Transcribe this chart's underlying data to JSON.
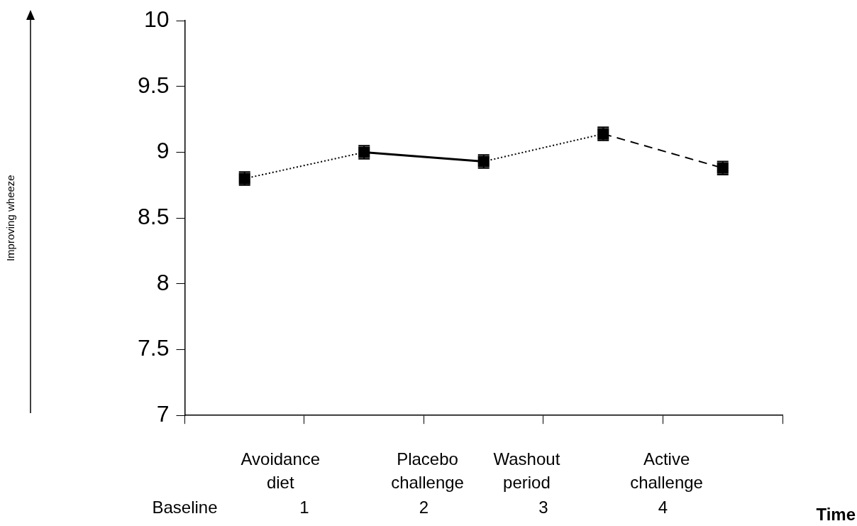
{
  "chart_data": {
    "type": "line",
    "xlabel": "Time",
    "xlim": [
      0,
      5
    ],
    "xticks": [
      {
        "value": 0,
        "label": "Baseline"
      },
      1,
      2,
      3,
      4,
      {
        "value": 5,
        "label": null
      }
    ],
    "ylim": [
      7,
      10
    ],
    "yticks": [
      7,
      7.5,
      8,
      8.5,
      9,
      9.5,
      10
    ],
    "grid": false,
    "legend": false,
    "annotations": [
      "Improving wheeze",
      "Avoidance diet",
      "Placebo challenge",
      "Washout period",
      "Active challenge"
    ],
    "series": [
      {
        "color": "#000000",
        "marker": "square",
        "line_style": [
          "dotted",
          "solid",
          "dotted",
          "dashed"
        ],
        "x": [
          0.5,
          1.5,
          2.5,
          3.5,
          4.5
        ],
        "values": [
          8.8,
          9.0,
          8.93,
          9.14,
          8.88
        ],
        "errors": [
          0.05,
          0.05,
          0.05,
          0.05,
          0.05
        ]
      }
    ]
  }
}
